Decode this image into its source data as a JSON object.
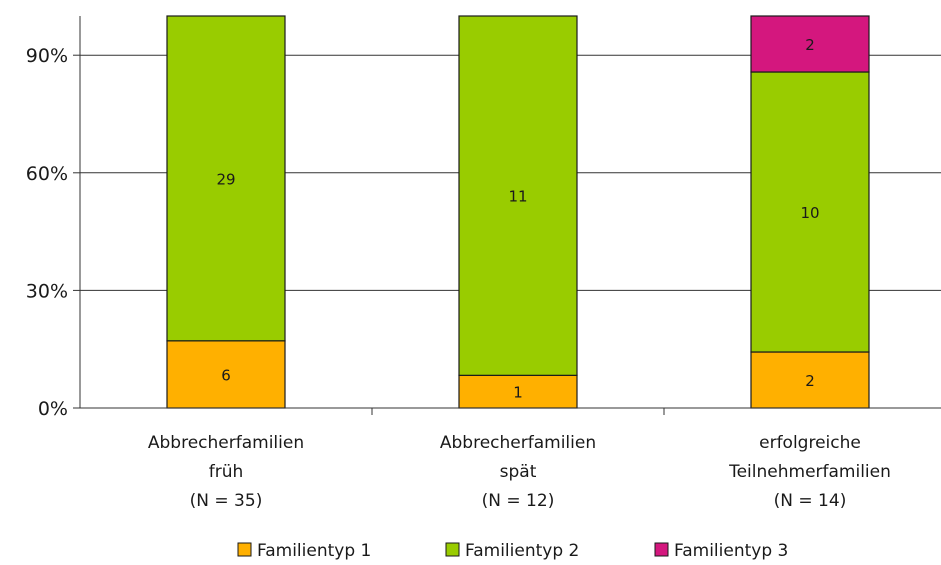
{
  "chart_data": {
    "type": "bar",
    "stacked": "percent",
    "categories": [
      [
        "Abbrecherfamilien",
        "früh",
        "(N = 35)"
      ],
      [
        "Abbrecherfamilien",
        "spät",
        "(N = 12)"
      ],
      [
        "erfolgreiche",
        "Teilnehmerfamilien",
        "(N = 14)"
      ]
    ],
    "series": [
      {
        "name": "Familientyp 1",
        "values": [
          6,
          1,
          2
        ],
        "color": "#FFB000"
      },
      {
        "name": "Familientyp 2",
        "values": [
          29,
          11,
          10
        ],
        "color": "#99CC00"
      },
      {
        "name": "Familientyp 3",
        "values": [
          0,
          0,
          2
        ],
        "color": "#D4177E"
      }
    ],
    "yticks": [
      "0%",
      "30%",
      "60%",
      "90%"
    ],
    "ytick_values": [
      0,
      30,
      60,
      90
    ],
    "ylim": [
      0,
      100
    ],
    "grid": true,
    "legend": "bottom"
  }
}
